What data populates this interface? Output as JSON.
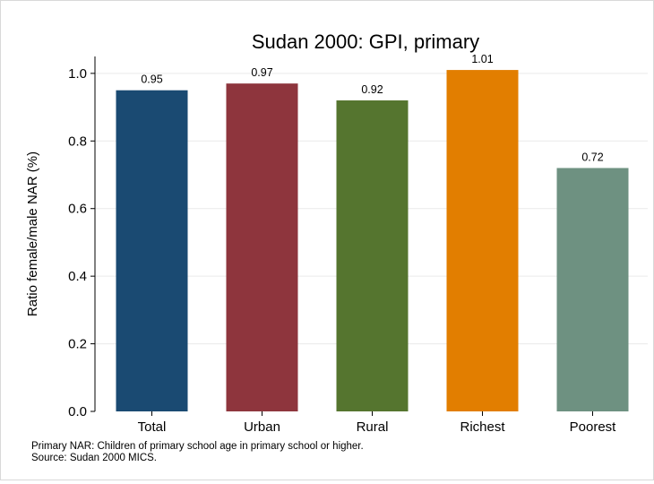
{
  "chart_data": {
    "type": "bar",
    "title": "Sudan 2000: GPI, primary",
    "ylabel": "Ratio female/male NAR (%)",
    "xlabel": "",
    "categories": [
      "Total",
      "Urban",
      "Rural",
      "Richest",
      "Poorest"
    ],
    "values": [
      0.95,
      0.97,
      0.92,
      1.01,
      0.72
    ],
    "value_labels": [
      "0.95",
      "0.97",
      "0.92",
      "1.01",
      "0.72"
    ],
    "colors": [
      "#1a4a72",
      "#8e353d",
      "#55752f",
      "#e27e00",
      "#6e9181"
    ],
    "ylim": [
      0,
      1.05
    ],
    "yticks": [
      0.0,
      0.2,
      0.4,
      0.6,
      0.8,
      1.0
    ],
    "ytick_labels": [
      "0.0",
      "0.2",
      "0.4",
      "0.6",
      "0.8",
      "1.0"
    ],
    "grid": true,
    "legend": "none"
  },
  "notes": {
    "line1": "Primary NAR: Children of primary school age in primary school or higher.",
    "line2": "Source: Sudan 2000 MICS."
  }
}
